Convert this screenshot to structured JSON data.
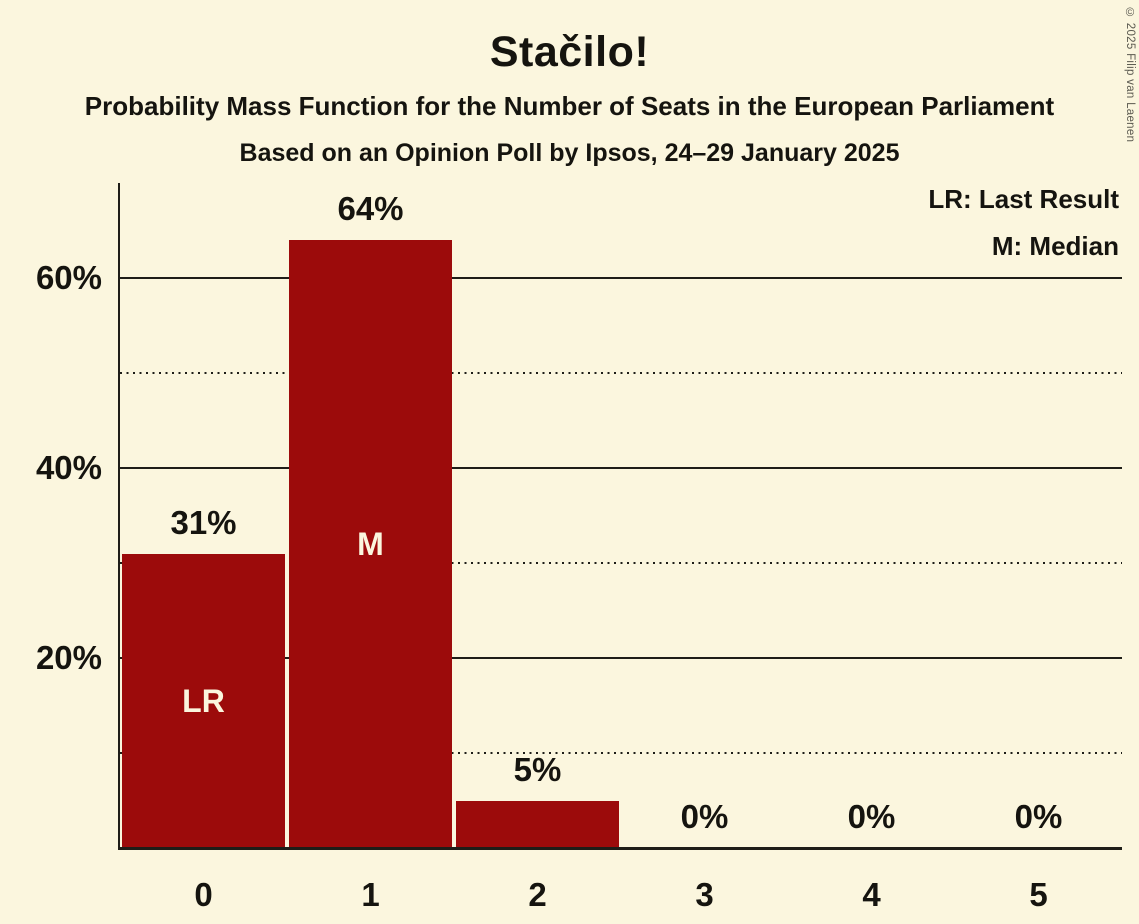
{
  "title": "Stačilo!",
  "subtitle": "Probability Mass Function for the Number of Seats in the European Parliament",
  "subsubtitle": "Based on an Opinion Poll by Ipsos, 24–29 January 2025",
  "copyright": "© 2025 Filip van Laenen",
  "legend": {
    "lr_label": "LR: Last Result",
    "m_label": "M: Median"
  },
  "colors": {
    "background": "#FBF6DE",
    "bar": "#9C0B0B",
    "text": "#15140F",
    "grid": "#1E1D18",
    "bar_label": "#FBF6DE",
    "copyright": "#5B5A50"
  },
  "chart_data": {
    "type": "bar",
    "categories": [
      "0",
      "1",
      "2",
      "3",
      "4",
      "5"
    ],
    "values": [
      31,
      64,
      5,
      0,
      0,
      0
    ],
    "value_labels": [
      "31%",
      "64%",
      "5%",
      "0%",
      "0%",
      "0%"
    ],
    "bar_annotations": [
      "LR",
      "M",
      "",
      "",
      "",
      ""
    ],
    "title": "Stačilo!",
    "xlabel": "",
    "ylabel": "",
    "ylim": [
      0,
      70
    ],
    "y_axis": {
      "tick_labels": [
        {
          "value": 20,
          "label": "20%"
        },
        {
          "value": 40,
          "label": "40%"
        },
        {
          "value": 60,
          "label": "60%"
        }
      ],
      "solid_gridlines": [
        20,
        40,
        60
      ],
      "dotted_gridlines": [
        10,
        30,
        50
      ]
    },
    "grid": "horizontal",
    "legend_position": "top-right"
  }
}
